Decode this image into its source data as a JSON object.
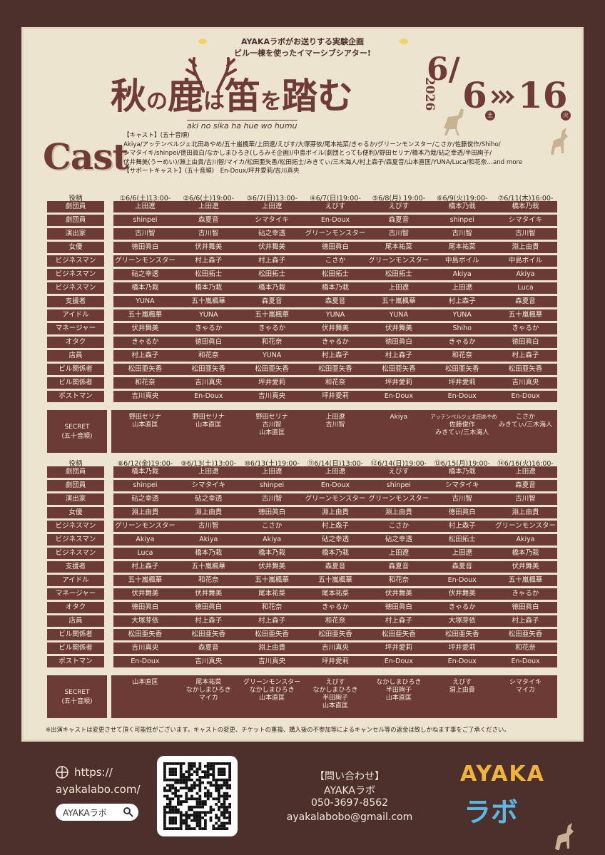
{
  "header": {
    "tagline": [
      "AYAKAラボがお送りする実験企画",
      "ビル一棟を使ったイマーシブシアター!"
    ],
    "title_parts": [
      "秋",
      "の",
      "鹿",
      "は",
      "笛",
      "を",
      "踏",
      "む"
    ],
    "romaji": "aki no sika ha hue wo humu",
    "date": {
      "year": "2026",
      "month": "6/",
      "start": "6",
      "end": "16",
      "start_day": "土",
      "end_day": "火"
    }
  },
  "cast": {
    "heading": "Cast",
    "lines": [
      "【キャスト】(五十音順)",
      "Akiya/アッテンベルジェ北田あやめ/五十嵐楓華/上田遼/えびす/大塚芽依/尾本祐菜/きゃるか/グリーンモンスター/こさか/佐藤俊作/Shiho/",
      "シマタイキ/shinpei/徳田眞白/なかしまひろき(しろみそ企画)/中島ボイル(劇団とっても便利)/野田セリナ/橋本乃栽/砧之幸透/半田絢子/",
      "伏井舞美(うーめい)/淵上由貴/古川智/マイカ/松田亜矢香/松田拓士/みきてぃ/三木海人/村上森子/森夏音/山本直匡/YUNA/Luca/和花奈…and more",
      "【サポートキャスト】(五十音順)　En-Doux/坪井愛莉/吉川真央"
    ]
  },
  "tables": [
    {
      "role_header": "役柄",
      "shows": [
        "①6/6(土)13:00-",
        "②6/6(土)19:00-",
        "③6/7(日)13:00-",
        "④6/7(日)19:00-",
        "⑤6/8(月) 19:00-",
        "⑥6/9(火)19:00-",
        "⑦6/11(木)16:00-"
      ],
      "rows": [
        {
          "role": "劇団員",
          "cast": [
            "上田遼",
            "上田遼",
            "上田遼",
            "えびす",
            "えびす",
            "橋本乃栽",
            "橋本乃栽"
          ]
        },
        {
          "role": "劇団員",
          "cast": [
            "shinpei",
            "森夏音",
            "シマタイキ",
            "En-Doux",
            "森夏音",
            "shinpei",
            "シマタイキ"
          ]
        },
        {
          "role": "演出家",
          "cast": [
            "古川智",
            "古川智",
            "砧之幸透",
            "グリーンモンスター",
            "古川智",
            "古川智",
            "古川智"
          ]
        },
        {
          "role": "女優",
          "cast": [
            "徳田眞白",
            "伏井舞美",
            "伏井舞美",
            "徳田眞白",
            "尾本祐菜",
            "尾本祐菜",
            "淵上由貴"
          ]
        },
        {
          "role": "ビジネスマン",
          "cast": [
            "グリーンモンスター",
            "村上森子",
            "村上森子",
            "こさか",
            "グリーンモンスター",
            "中島ボイル",
            "中島ボイル"
          ]
        },
        {
          "role": "ビジネスマン",
          "cast": [
            "砧之幸透",
            "松田拓士",
            "松田拓士",
            "松田拓士",
            "松田拓士",
            "Akiya",
            "Akiya"
          ]
        },
        {
          "role": "ビジネスマン",
          "cast": [
            "橋本乃栽",
            "橋本乃栽",
            "橋本乃栽",
            "橋本乃栽",
            "上田遼",
            "上田遼",
            "Luca"
          ]
        },
        {
          "role": "支援者",
          "cast": [
            "YUNA",
            "五十嵐楓華",
            "森夏音",
            "森夏音",
            "五十嵐楓華",
            "村上森子",
            "森夏音"
          ]
        },
        {
          "role": "アイドル",
          "cast": [
            "五十嵐楓華",
            "YUNA",
            "五十嵐楓華",
            "YUNA",
            "YUNA",
            "YUNA",
            "五十嵐楓華"
          ]
        },
        {
          "role": "マネージャー",
          "cast": [
            "伏井舞美",
            "きゃるか",
            "きゃるか",
            "伏井舞美",
            "伏井舞美",
            "Shiho",
            "きゃるか"
          ]
        },
        {
          "role": "オタク",
          "cast": [
            "きゃるか",
            "徳田眞白",
            "和花奈",
            "きゃるか",
            "徳田眞白",
            "きゃるか",
            "徳田眞白"
          ]
        },
        {
          "role": "店員",
          "cast": [
            "村上森子",
            "和花奈",
            "YUNA",
            "村上森子",
            "村上森子",
            "和花奈",
            "村上森子"
          ]
        },
        {
          "role": "ビル関係者",
          "cast": [
            "松田亜矢香",
            "松田亜矢香",
            "松田亜矢香",
            "松田亜矢香",
            "松田亜矢香",
            "松田亜矢香",
            "松田亜矢香"
          ]
        },
        {
          "role": "ビル関係者",
          "cast": [
            "和花奈",
            "吉川真央",
            "坪井愛莉",
            "和花奈",
            "坪井愛莉",
            "坪井愛莉",
            "吉川真央"
          ]
        },
        {
          "role": "ポストマン",
          "cast": [
            "吉川真央",
            "En-Doux",
            "吉川真央",
            "坪井愛莉",
            "En-Doux",
            "En-Doux",
            "En-Doux"
          ]
        }
      ],
      "secret": {
        "label": [
          "SECRET",
          "(五十音順)"
        ],
        "cast": [
          [
            "野田セリナ",
            "山本直匡"
          ],
          [
            "野田セリナ",
            "山本直匡"
          ],
          [
            "野田セリナ",
            "古川智",
            "山本直匡"
          ],
          [
            "上田遼",
            "古川智"
          ],
          [
            "Akiya"
          ],
          [
            "アッテンベルジェ北田あやめ",
            "佐藤俊作",
            "みきてぃ/三木海人"
          ],
          [
            "こさか",
            "みきてぃ/三木海人"
          ]
        ]
      }
    },
    {
      "role_header": "役柄",
      "shows": [
        "⑧6/12(金)19:00-",
        "⑨6/13(土)13:00-",
        "⑩6/13(土)19:00-",
        "⑪6/14(日)13:00-",
        "⑫6/14(日)19:00-",
        "⑬6/15(月)19:00-",
        "⑭6/16(火)16:00-"
      ],
      "rows": [
        {
          "role": "劇団員",
          "cast": [
            "橋本乃栽",
            "上田遼",
            "上田遼",
            "上田遼",
            "えびす",
            "橋本乃栽",
            "上田遼"
          ]
        },
        {
          "role": "劇団員",
          "cast": [
            "shinpei",
            "シマタイキ",
            "shinpei",
            "En-Doux",
            "shinpei",
            "シマタイキ",
            "森夏音"
          ]
        },
        {
          "role": "演出家",
          "cast": [
            "砧之幸透",
            "砧之幸透",
            "古川智",
            "グリーンモンスター",
            "グリーンモンスター",
            "古川智",
            "古川智"
          ]
        },
        {
          "role": "女優",
          "cast": [
            "淵上由貴",
            "淵上由貴",
            "徳田眞白",
            "淵上由貴",
            "淵上由貴",
            "徳田眞白",
            "淵上由貴"
          ]
        },
        {
          "role": "ビジネスマン",
          "cast": [
            "グリーンモンスター",
            "古川智",
            "こさか",
            "村上森子",
            "こさか",
            "村上森子",
            "グリーンモンスター"
          ]
        },
        {
          "role": "ビジネスマン",
          "cast": [
            "Akiya",
            "Akiya",
            "Akiya",
            "砧之幸透",
            "砧之幸透",
            "松田拓士",
            "Akiya"
          ]
        },
        {
          "role": "ビジネスマン",
          "cast": [
            "Luca",
            "橋本乃栽",
            "橋本乃栽",
            "橋本乃栽",
            "上田遼",
            "上田遼",
            "橋本乃栽"
          ]
        },
        {
          "role": "支援者",
          "cast": [
            "村上森子",
            "五十嵐楓華",
            "伏井舞美",
            "森夏音",
            "森夏音",
            "森夏音",
            "伏井舞美"
          ]
        },
        {
          "role": "アイドル",
          "cast": [
            "五十嵐楓華",
            "和花奈",
            "五十嵐楓華",
            "五十嵐楓華",
            "和花奈",
            "En-Doux",
            "五十嵐楓華"
          ]
        },
        {
          "role": "マネージャー",
          "cast": [
            "伏井舞美",
            "伏井舞美",
            "尾本祐菜",
            "尾本祐菜",
            "伏井舞美",
            "伏井舞美",
            "きゃるか"
          ]
        },
        {
          "role": "オタク",
          "cast": [
            "徳田眞白",
            "徳田眞白",
            "和花奈",
            "きゃるか",
            "徳田眞白",
            "きゃるか",
            "徳田眞白"
          ]
        },
        {
          "role": "店員",
          "cast": [
            "大塚芽依",
            "村上森子",
            "村上森子",
            "和花奈",
            "村上森子",
            "大塚芽依",
            "村上森子"
          ]
        },
        {
          "role": "ビル関係者",
          "cast": [
            "松田亜矢香",
            "松田亜矢香",
            "松田亜矢香",
            "松田亜矢香",
            "松田亜矢香",
            "松田亜矢香",
            "松田亜矢香"
          ]
        },
        {
          "role": "ビル関係者",
          "cast": [
            "吉川真央",
            "森夏音",
            "淵上由貴",
            "吉川真央",
            "坪井愛莉",
            "坪井愛莉",
            "和花奈"
          ]
        },
        {
          "role": "ポストマン",
          "cast": [
            "En-Doux",
            "吉川真央",
            "吉川真央",
            "坪井愛莉",
            "En-Doux",
            "En-Doux",
            "En-Doux"
          ]
        }
      ],
      "secret": {
        "label": [
          "SECRET",
          "(五十音順)"
        ],
        "cast": [
          [
            "山本直匡"
          ],
          [
            "尾本祐菜",
            "なかしまひろき",
            "マイカ"
          ],
          [
            "グリーンモンスター",
            "なかしまひろき",
            "山本直匡"
          ],
          [
            "えびす",
            "なかしまひろき",
            "半田絢子",
            "山本直匡"
          ],
          [
            "なかしまひろき",
            "半田絢子",
            "山本直匡"
          ],
          [
            "えびす",
            "淵上由貴"
          ],
          [
            "シマタイキ",
            "マイカ"
          ]
        ]
      }
    }
  ],
  "note": "※出演キャストは変更させて頂く可能性がございます。キャストの変更、チケットの重複、購入後の不参加等によるキャンセル等の返金は致しかねます事をご了承ください。",
  "footer": {
    "url": [
      "https://",
      "ayakalabo.com/"
    ],
    "search": "AYAKAラボ",
    "contact_heading": "【問い合わせ】",
    "contact_name": "AYAKAラボ",
    "phone": "050-3697-8562",
    "email": "ayakalabobo@gmail.com",
    "logo": [
      "AYAKA",
      "ラボ"
    ]
  }
}
